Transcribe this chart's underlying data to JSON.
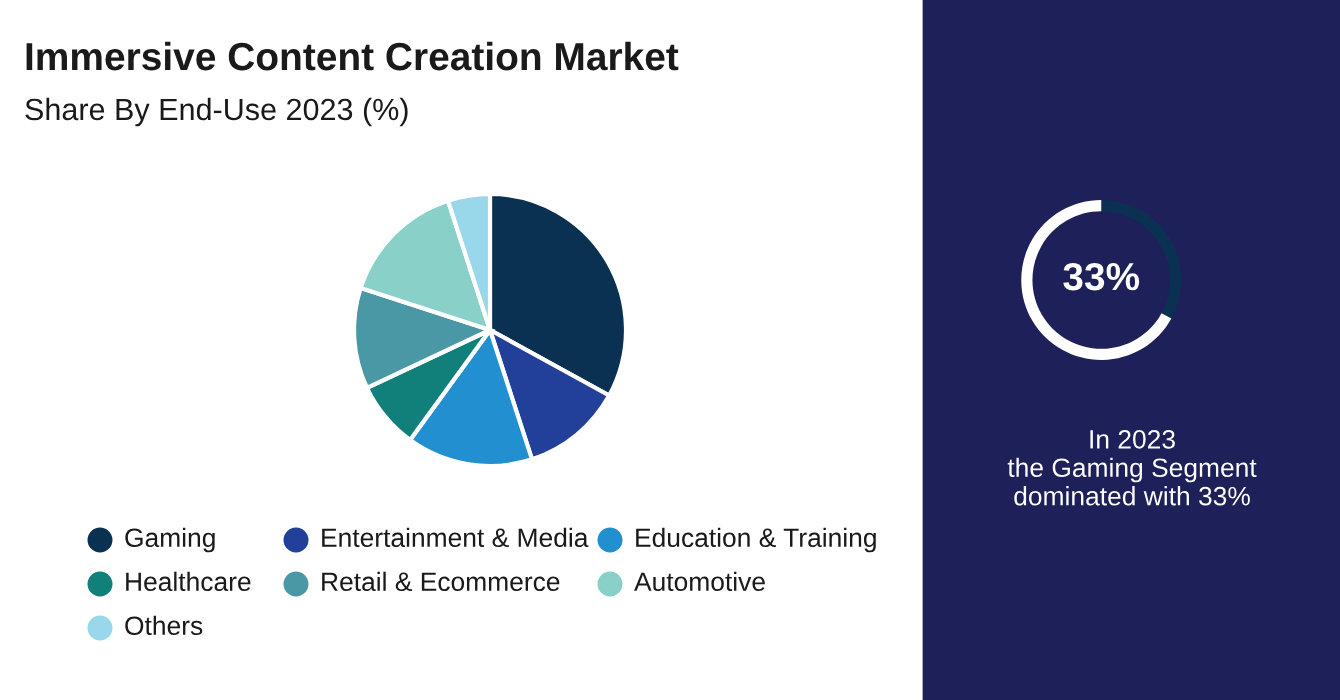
{
  "chart_data": [
    {
      "type": "pie",
      "title": "Immersive Content Creation Market",
      "subtitle": "Share By End-Use 2023 (%)",
      "categories": [
        "Gaming",
        "Entertainment & Media",
        "Education & Training",
        "Healthcare",
        "Retail & Ecommerce",
        "Automotive",
        "Others"
      ],
      "values": [
        33,
        12,
        15,
        8,
        12,
        15,
        5
      ],
      "colors": [
        "#0b3152",
        "#22409a",
        "#2290d0",
        "#11807a",
        "#4a98a6",
        "#88d0c8",
        "#98d8ea"
      ],
      "legend": "bottom"
    },
    {
      "type": "donut",
      "categories": [
        null,
        null
      ],
      "values": [
        33,
        67
      ],
      "colors": [
        "#0b3152",
        "#ffffff"
      ],
      "value_labels": [
        "33%",
        null
      ],
      "annotations": [
        "In 2023\nthe Gaming Segment\ndominated with 33%"
      ]
    }
  ]
}
